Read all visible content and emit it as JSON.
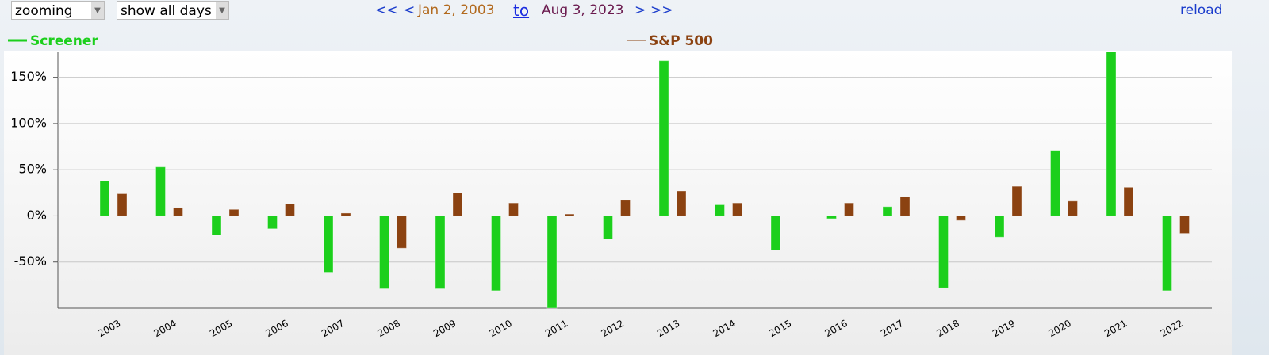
{
  "toolbar": {
    "zoom_select": "zooming",
    "days_select": "show all days",
    "nav": {
      "prev_far": "<<",
      "prev": "<",
      "start": "Jan 2, 2003",
      "to": "to",
      "end": "Aug 3, 2023",
      "next": ">",
      "next_far": ">>"
    },
    "reload": "reload"
  },
  "chart_data": {
    "type": "bar",
    "categories": [
      "2003",
      "2004",
      "2005",
      "2006",
      "2007",
      "2008",
      "2009",
      "2010",
      "2011",
      "2012",
      "2013",
      "2014",
      "2015",
      "2016",
      "2017",
      "2018",
      "2019",
      "2020",
      "2021",
      "2022"
    ],
    "series": [
      {
        "name": "Screener",
        "color": "#1ccf1c",
        "values": [
          38,
          53,
          -21,
          -14,
          -61,
          -79,
          -79,
          -81,
          -100,
          -25,
          168,
          12,
          -37,
          -3,
          10,
          -78,
          -23,
          71,
          178,
          -81
        ]
      },
      {
        "name": "S&P 500",
        "color": "#8b4211",
        "values": [
          24,
          9,
          7,
          13,
          3,
          -35,
          25,
          14,
          2,
          17,
          27,
          14,
          0,
          14,
          21,
          -5,
          32,
          16,
          31,
          -19
        ]
      }
    ],
    "ylim": [
      -100,
      178
    ],
    "yticks": [
      {
        "value": -50,
        "label": "-50%"
      },
      {
        "value": 0,
        "label": "0%"
      },
      {
        "value": 50,
        "label": "50%"
      },
      {
        "value": 100,
        "label": "100%"
      },
      {
        "value": 150,
        "label": "150%"
      }
    ],
    "grid": true
  }
}
